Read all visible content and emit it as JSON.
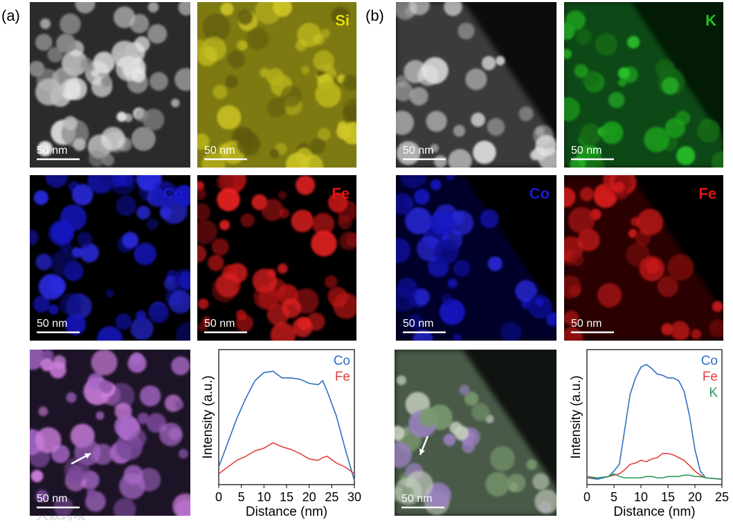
{
  "panels": [
    {
      "label": "(a)",
      "images": [
        {
          "scale_bar": "50 nm"
        },
        {
          "element": "Si",
          "color": "#e6df00",
          "scale_bar": "50 nm"
        },
        {
          "element": "Co",
          "color": "#1c1cd0",
          "scale_bar": "50 nm"
        },
        {
          "element": "Fe",
          "color": "#e01414",
          "scale_bar": "50 nm"
        },
        {
          "scale_bar": "50 nm"
        }
      ]
    },
    {
      "label": "(b)",
      "images": [
        {
          "scale_bar": "50 nm"
        },
        {
          "element": "K",
          "color": "#1fc21f",
          "scale_bar": "50 nm"
        },
        {
          "element": "Co",
          "color": "#1c1cd0",
          "scale_bar": "50 nm"
        },
        {
          "element": "Fe",
          "color": "#e01414",
          "scale_bar": "50 nm"
        },
        {
          "scale_bar": "50 nm"
        }
      ]
    }
  ],
  "chart_data": [
    {
      "type": "line",
      "xlabel": "Distance (nm)",
      "ylabel": "Intensity (a.u.)",
      "x": [
        0,
        2,
        4,
        6,
        8,
        10,
        12,
        14,
        16,
        18,
        20,
        22,
        23,
        24,
        26,
        28,
        30
      ],
      "series": [
        {
          "name": "Co",
          "color": "#2e6fc0",
          "values": [
            13,
            31,
            49,
            64,
            77,
            83,
            84,
            79,
            79,
            78,
            75,
            74,
            77,
            69,
            51,
            26,
            3
          ]
        },
        {
          "name": "Fe",
          "color": "#e0403c",
          "values": [
            8,
            13,
            18,
            21,
            25,
            27,
            31,
            28,
            26,
            23,
            19,
            18,
            20,
            21,
            16,
            13,
            8
          ]
        }
      ],
      "xlim": [
        0,
        30
      ],
      "xticks": [
        0,
        5,
        10,
        15,
        20,
        25,
        30
      ],
      "ylim": [
        0,
        100
      ]
    },
    {
      "type": "line",
      "xlabel": "Distance (nm)",
      "ylabel": "Intensity (a.u.)",
      "x": [
        0,
        2,
        4,
        5,
        6,
        7,
        8,
        9,
        10,
        11,
        12,
        13,
        14,
        15,
        16,
        17,
        18,
        19,
        20,
        21,
        22,
        25
      ],
      "series": [
        {
          "name": "Co",
          "color": "#2e6fc0",
          "values": [
            5,
            4,
            6,
            10,
            15,
            41,
            67,
            79,
            87,
            89,
            86,
            82,
            81,
            79,
            79,
            77,
            69,
            51,
            26,
            10,
            5,
            4
          ]
        },
        {
          "name": "Fe",
          "color": "#e0403c",
          "values": [
            5,
            5,
            6,
            7,
            8,
            11,
            15,
            16,
            18,
            17,
            19,
            20,
            23,
            23,
            22,
            20,
            18,
            14,
            10,
            7,
            5,
            4
          ]
        },
        {
          "name": "K",
          "color": "#2a9a5a",
          "values": [
            6,
            5,
            6,
            8,
            6,
            5,
            5,
            5,
            5,
            6,
            6,
            5,
            5,
            6,
            6,
            6,
            7,
            7,
            6,
            6,
            5,
            4
          ]
        }
      ],
      "xlim": [
        0,
        25
      ],
      "xticks": [
        0,
        5,
        10,
        15,
        20,
        25
      ],
      "ylim": [
        0,
        100
      ]
    }
  ],
  "watermark": "大数跨境"
}
